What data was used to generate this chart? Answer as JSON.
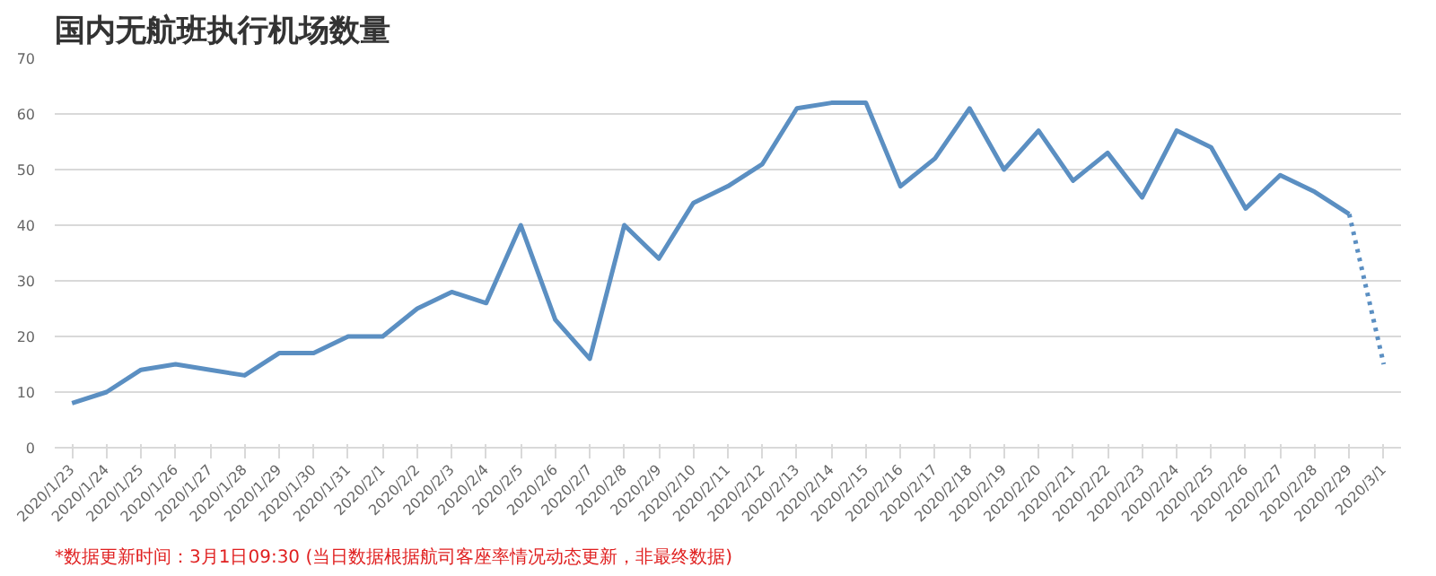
{
  "chart_data": {
    "type": "line",
    "title": "国内无航班执行机场数量",
    "categories": [
      "2020/1/23",
      "2020/1/24",
      "2020/1/25",
      "2020/1/26",
      "2020/1/27",
      "2020/1/28",
      "2020/1/29",
      "2020/1/30",
      "2020/1/31",
      "2020/2/1",
      "2020/2/2",
      "2020/2/3",
      "2020/2/4",
      "2020/2/5",
      "2020/2/6",
      "2020/2/7",
      "2020/2/8",
      "2020/2/9",
      "2020/2/10",
      "2020/2/11",
      "2020/2/12",
      "2020/2/13",
      "2020/2/14",
      "2020/2/15",
      "2020/2/16",
      "2020/2/17",
      "2020/2/18",
      "2020/2/19",
      "2020/2/20",
      "2020/2/21",
      "2020/2/22",
      "2020/2/23",
      "2020/2/24",
      "2020/2/25",
      "2020/2/26",
      "2020/2/27",
      "2020/2/28",
      "2020/2/29",
      "2020/3/1"
    ],
    "series": [
      {
        "color": "#5b8fc2",
        "line_style": "solid",
        "values": [
          8,
          10,
          14,
          15,
          14,
          13,
          17,
          17,
          20,
          20,
          25,
          28,
          26,
          40,
          23,
          16,
          40,
          34,
          44,
          47,
          51,
          61,
          62,
          62,
          47,
          52,
          61,
          50,
          57,
          48,
          53,
          45,
          57,
          54,
          43,
          49,
          46,
          42,
          null
        ]
      },
      {
        "color": "#5b8fc2",
        "line_style": "dotted",
        "values": [
          null,
          null,
          null,
          null,
          null,
          null,
          null,
          null,
          null,
          null,
          null,
          null,
          null,
          null,
          null,
          null,
          null,
          null,
          null,
          null,
          null,
          null,
          null,
          null,
          null,
          null,
          null,
          null,
          null,
          null,
          null,
          null,
          null,
          null,
          null,
          null,
          null,
          42,
          15
        ]
      }
    ],
    "ylim": [
      0,
      70
    ],
    "yticks": [
      0,
      10,
      20,
      30,
      40,
      50,
      60,
      70
    ],
    "grid": "y",
    "marker": "none",
    "annotations": [
      "*数据更新时间：3月1日09:30 (当日数据根据航司客座率情况动态更新，非最终数据)"
    ]
  }
}
